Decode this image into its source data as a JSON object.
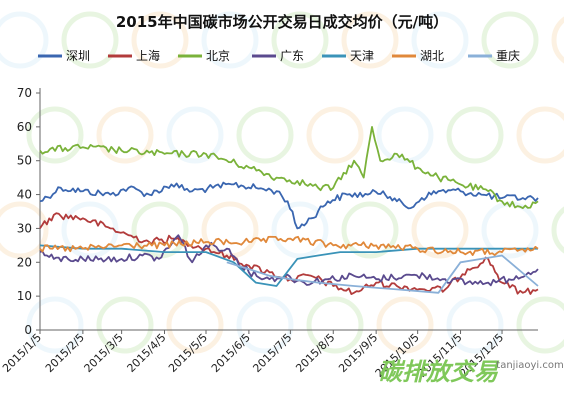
{
  "chart_data": {
    "type": "line",
    "title": "2015年中国碳市场公开交易日成交均价（元/吨）",
    "xlabel": "",
    "ylabel": "",
    "ylim": [
      0,
      70
    ],
    "yticks": [
      0,
      10,
      20,
      30,
      40,
      50,
      60,
      70
    ],
    "xlim": [
      "2015-01-05",
      "2015-12-31"
    ],
    "xticks": [
      "2015/1/5",
      "2015/2/5",
      "2015/3/5",
      "2015/4/5",
      "2015/5/5",
      "2015/6/5",
      "2015/7/5",
      "2015/8/5",
      "2015/9/5",
      "2015/10/5",
      "2015/11/5",
      "2015/12/5"
    ],
    "grid": false,
    "legend_position": "top",
    "series": [
      {
        "name": "深圳",
        "color": "#3a66b0",
        "style": "noisy",
        "points": [
          [
            "2015-01-05",
            38
          ],
          [
            "2015-01-20",
            42
          ],
          [
            "2015-02-05",
            41
          ],
          [
            "2015-02-25",
            40
          ],
          [
            "2015-03-10",
            42
          ],
          [
            "2015-03-25",
            40
          ],
          [
            "2015-04-10",
            43
          ],
          [
            "2015-04-25",
            41
          ],
          [
            "2015-05-10",
            42
          ],
          [
            "2015-05-25",
            43
          ],
          [
            "2015-06-10",
            42
          ],
          [
            "2015-06-25",
            41
          ],
          [
            "2015-07-03",
            38
          ],
          [
            "2015-07-10",
            30
          ],
          [
            "2015-07-20",
            33
          ],
          [
            "2015-08-01",
            38
          ],
          [
            "2015-08-15",
            40
          ],
          [
            "2015-08-30",
            40
          ],
          [
            "2015-09-10",
            41
          ],
          [
            "2015-09-20",
            38
          ],
          [
            "2015-09-30",
            36
          ],
          [
            "2015-10-08",
            39
          ],
          [
            "2015-10-20",
            41
          ],
          [
            "2015-11-05",
            41
          ],
          [
            "2015-11-20",
            40
          ],
          [
            "2015-12-05",
            39
          ],
          [
            "2015-12-20",
            39
          ],
          [
            "2015-12-31",
            39
          ]
        ]
      },
      {
        "name": "上海",
        "color": "#b23b3b",
        "style": "noisy",
        "points": [
          [
            "2015-01-05",
            30
          ],
          [
            "2015-01-15",
            34
          ],
          [
            "2015-02-05",
            33
          ],
          [
            "2015-02-25",
            30
          ],
          [
            "2015-03-10",
            28
          ],
          [
            "2015-03-25",
            26
          ],
          [
            "2015-04-10",
            27
          ],
          [
            "2015-04-20",
            26
          ],
          [
            "2015-05-05",
            24
          ],
          [
            "2015-05-20",
            22
          ],
          [
            "2015-06-05",
            19
          ],
          [
            "2015-06-20",
            17
          ],
          [
            "2015-07-05",
            15
          ],
          [
            "2015-07-20",
            16
          ],
          [
            "2015-08-05",
            13
          ],
          [
            "2015-08-20",
            11
          ],
          [
            "2015-09-05",
            14
          ],
          [
            "2015-09-20",
            13
          ],
          [
            "2015-10-10",
            12
          ],
          [
            "2015-10-25",
            12
          ],
          [
            "2015-11-10",
            18
          ],
          [
            "2015-11-25",
            21
          ],
          [
            "2015-12-05",
            14
          ],
          [
            "2015-12-20",
            11
          ],
          [
            "2015-12-31",
            12
          ]
        ]
      },
      {
        "name": "北京",
        "color": "#7ab23a",
        "style": "noisy",
        "points": [
          [
            "2015-01-05",
            53
          ],
          [
            "2015-02-05",
            54
          ],
          [
            "2015-03-05",
            53
          ],
          [
            "2015-04-05",
            52
          ],
          [
            "2015-05-05",
            52
          ],
          [
            "2015-06-05",
            48
          ],
          [
            "2015-06-25",
            45
          ],
          [
            "2015-07-10",
            44
          ],
          [
            "2015-07-25",
            42
          ],
          [
            "2015-08-05",
            42
          ],
          [
            "2015-08-20",
            50
          ],
          [
            "2015-08-27",
            45
          ],
          [
            "2015-09-02",
            60
          ],
          [
            "2015-09-08",
            50
          ],
          [
            "2015-09-20",
            52
          ],
          [
            "2015-10-05",
            48
          ],
          [
            "2015-10-20",
            45
          ],
          [
            "2015-11-05",
            43
          ],
          [
            "2015-11-25",
            41
          ],
          [
            "2015-12-05",
            38
          ],
          [
            "2015-12-20",
            36
          ],
          [
            "2015-12-31",
            38
          ]
        ]
      },
      {
        "name": "广东",
        "color": "#5a4a8e",
        "style": "noisy",
        "points": [
          [
            "2015-01-05",
            23
          ],
          [
            "2015-01-15",
            21
          ],
          [
            "2015-02-05",
            21
          ],
          [
            "2015-03-05",
            21
          ],
          [
            "2015-03-20",
            22
          ],
          [
            "2015-04-01",
            21
          ],
          [
            "2015-04-15",
            28
          ],
          [
            "2015-04-25",
            20
          ],
          [
            "2015-05-05",
            25
          ],
          [
            "2015-05-20",
            24
          ],
          [
            "2015-06-05",
            17
          ],
          [
            "2015-06-20",
            15
          ],
          [
            "2015-07-01",
            16
          ],
          [
            "2015-07-15",
            14
          ],
          [
            "2015-08-01",
            15
          ],
          [
            "2015-08-20",
            16
          ],
          [
            "2015-09-05",
            15
          ],
          [
            "2015-09-25",
            16
          ],
          [
            "2015-10-10",
            16
          ],
          [
            "2015-10-25",
            15
          ],
          [
            "2015-11-10",
            14
          ],
          [
            "2015-11-25",
            14
          ],
          [
            "2015-12-10",
            15
          ],
          [
            "2015-12-31",
            18
          ]
        ]
      },
      {
        "name": "天津",
        "color": "#3a93b8",
        "style": "smooth",
        "points": [
          [
            "2015-01-05",
            25
          ],
          [
            "2015-02-05",
            24
          ],
          [
            "2015-03-05",
            24
          ],
          [
            "2015-04-05",
            23
          ],
          [
            "2015-05-05",
            23
          ],
          [
            "2015-05-25",
            20
          ],
          [
            "2015-06-10",
            14
          ],
          [
            "2015-06-25",
            13
          ],
          [
            "2015-07-10",
            21
          ],
          [
            "2015-07-25",
            22
          ],
          [
            "2015-08-10",
            23
          ],
          [
            "2015-09-05",
            23
          ],
          [
            "2015-10-05",
            24
          ],
          [
            "2015-11-05",
            24
          ],
          [
            "2015-12-01",
            24
          ],
          [
            "2015-12-31",
            24
          ]
        ]
      },
      {
        "name": "湖北",
        "color": "#e0883a",
        "style": "noisy",
        "points": [
          [
            "2015-01-05",
            24
          ],
          [
            "2015-02-05",
            24
          ],
          [
            "2015-03-05",
            25
          ],
          [
            "2015-04-05",
            25
          ],
          [
            "2015-05-05",
            26
          ],
          [
            "2015-06-05",
            26
          ],
          [
            "2015-07-05",
            27
          ],
          [
            "2015-08-05",
            25
          ],
          [
            "2015-09-05",
            25
          ],
          [
            "2015-10-05",
            24
          ],
          [
            "2015-11-05",
            23
          ],
          [
            "2015-12-05",
            23
          ],
          [
            "2015-12-31",
            24
          ]
        ]
      },
      {
        "name": "重庆",
        "color": "#8ab0d8",
        "style": "smooth",
        "points": [
          [
            "2015-05-20",
            20
          ],
          [
            "2015-06-05",
            18
          ],
          [
            "2015-06-20",
            16
          ],
          [
            "2015-07-05",
            15
          ],
          [
            "2015-07-25",
            14
          ],
          [
            "2015-08-20",
            13
          ],
          [
            "2015-09-20",
            12
          ],
          [
            "2015-10-20",
            11
          ],
          [
            "2015-11-05",
            20
          ],
          [
            "2015-11-20",
            21
          ],
          [
            "2015-12-05",
            22
          ],
          [
            "2015-12-31",
            13
          ]
        ]
      }
    ]
  },
  "watermark": {
    "logo_text": "碳排放交易",
    "url_text": "tanjiaoyi.com",
    "colors": [
      "#9fd0f0",
      "#7fc85a",
      "#f0b060"
    ]
  }
}
